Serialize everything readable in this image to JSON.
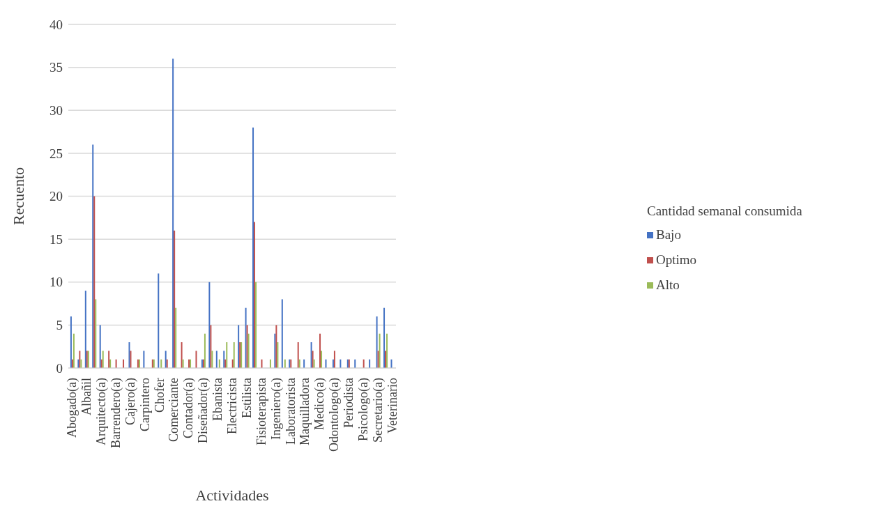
{
  "chart_data": {
    "type": "bar",
    "xlabel": "Actividades",
    "ylabel": "Recuento",
    "legend_title": "Cantidad semanal consumida",
    "categories": [
      "Abogado(a)",
      null,
      "Albañil",
      null,
      "Arquitecto(a)",
      null,
      "Barrendero(a)",
      null,
      "Cajero(a)",
      null,
      "Carpintero",
      null,
      "Chofer",
      null,
      "Comerciante",
      null,
      "Contador(a)",
      null,
      "Diseñador(a)",
      null,
      "Ebanista",
      null,
      "Electricista",
      null,
      "Estilista",
      null,
      "Fisioterapista",
      null,
      "Ingeniero(a)",
      null,
      "Laboratorista",
      null,
      "Maquilladora",
      null,
      "Medico(a)",
      null,
      "Odontologo(a)",
      null,
      "Periodista",
      null,
      "Psicologo(a)",
      null,
      "Secretario(a)",
      null,
      "Veterinario"
    ],
    "series": [
      {
        "name": "Bajo",
        "color": "#4472c4",
        "values": [
          6,
          1,
          9,
          26,
          5,
          0,
          0,
          0,
          3,
          0,
          2,
          0,
          11,
          2,
          36,
          0,
          0,
          0,
          1,
          10,
          2,
          2,
          0,
          5,
          7,
          28,
          0,
          0,
          4,
          8,
          1,
          0,
          1,
          3,
          0,
          1,
          1,
          1,
          1,
          1,
          0,
          1,
          6,
          7,
          1
        ]
      },
      {
        "name": "Optimo",
        "color": "#c0504d",
        "values": [
          1,
          2,
          2,
          20,
          1,
          2,
          1,
          1,
          2,
          1,
          0,
          1,
          0,
          1,
          16,
          3,
          1,
          2,
          1,
          5,
          0,
          1,
          1,
          3,
          5,
          17,
          1,
          0,
          5,
          0,
          1,
          3,
          0,
          2,
          4,
          0,
          2,
          0,
          1,
          0,
          1,
          0,
          2,
          2,
          0
        ]
      },
      {
        "name": "Alto",
        "color": "#9bbb59",
        "values": [
          4,
          1,
          2,
          8,
          2,
          1,
          0,
          0,
          0,
          1,
          0,
          1,
          1,
          0,
          7,
          1,
          1,
          0,
          4,
          2,
          1,
          3,
          3,
          3,
          4,
          10,
          0,
          1,
          3,
          1,
          0,
          1,
          0,
          1,
          2,
          0,
          0,
          0,
          0,
          0,
          0,
          0,
          4,
          4,
          0
        ]
      }
    ],
    "ylim": [
      0,
      40
    ],
    "yticks": [
      0,
      5,
      10,
      15,
      20,
      25,
      30,
      35,
      40
    ],
    "grid": "y",
    "legend": "right"
  }
}
